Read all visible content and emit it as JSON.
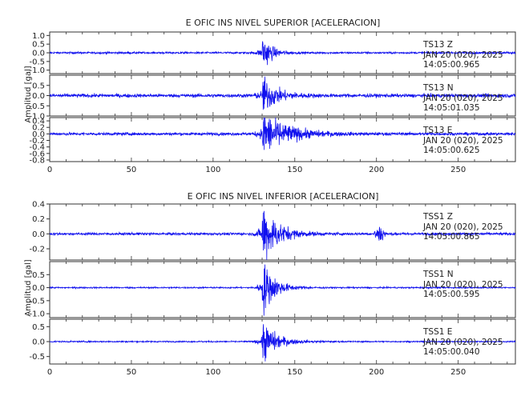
{
  "chart_data": [
    {
      "type": "line",
      "title": "E OFIC INS NIVEL SUPERIOR [ACELERACION]",
      "ylabel": "Amplitud [gal]",
      "xlabel": "",
      "xlim": [
        0,
        285
      ],
      "x_ticks": [
        0,
        50,
        100,
        150,
        200,
        250
      ],
      "grid": false,
      "series_color": "#1010ee",
      "event_time": 130,
      "panels": [
        {
          "station": "TS13",
          "component": "Z",
          "date": "JAN 20 (020), 2025",
          "time": "14:05:00.965",
          "ylim": [
            -1.2,
            1.2
          ],
          "y_ticks": [
            1.0,
            0.5,
            0.0,
            -0.5,
            -1.0
          ],
          "y_tick_labels": [
            "1.0",
            "0.5",
            "0.0",
            "-0.5",
            "-1.0"
          ],
          "noise": 0.05,
          "peak": 1.1,
          "decay": 5
        },
        {
          "station": "TS13",
          "component": "N",
          "date": "JAN 20 (020), 2025",
          "time": "14:05:01.035",
          "ylim": [
            -1.0,
            1.0
          ],
          "y_ticks": [
            0.5,
            0.0,
            -0.5,
            -1.0
          ],
          "y_tick_labels": [
            "0.5",
            "0.0",
            "-0.5",
            "-1.0"
          ],
          "noise": 0.08,
          "peak": 0.9,
          "decay": 8
        },
        {
          "station": "TS13",
          "component": "E",
          "date": "JAN 20 (020), 2025",
          "time": "14:05:00.625",
          "ylim": [
            -0.85,
            0.5
          ],
          "y_ticks": [
            0.4,
            0.2,
            0.0,
            -0.2,
            -0.4,
            -0.6,
            -0.8
          ],
          "y_tick_labels": [
            "0.4",
            "0.2",
            "0.0",
            "-0.2",
            "-0.4",
            "-0.6",
            "-0.8"
          ],
          "noise": 0.04,
          "peak": 0.7,
          "decay": 14
        }
      ]
    },
    {
      "type": "line",
      "title": "E OFIC INS NIVEL INFERIOR [ACELERACION]",
      "ylabel": "Amplitud [gal]",
      "xlabel": "",
      "xlim": [
        0,
        285
      ],
      "x_ticks": [
        0,
        50,
        100,
        150,
        200,
        250
      ],
      "grid": false,
      "series_color": "#1010ee",
      "event_time": 130,
      "panels": [
        {
          "station": "TSS1",
          "component": "Z",
          "date": "JAN 20 (020), 2025",
          "time": "14:05:00.865",
          "ylim": [
            -0.35,
            0.4
          ],
          "y_ticks": [
            0.4,
            0.2,
            0.0,
            -0.2
          ],
          "y_tick_labels": [
            "0.4",
            "0.2",
            "0.0",
            "-0.2"
          ],
          "noise": 0.015,
          "peak": 0.4,
          "decay": 9,
          "secondary_burst": 202
        },
        {
          "station": "TSS1",
          "component": "N",
          "date": "JAN 20 (020), 2025",
          "time": "14:05:00.595",
          "ylim": [
            -1.15,
            1.0
          ],
          "y_ticks": [
            0.5,
            0.0,
            -0.5,
            -1.0
          ],
          "y_tick_labels": [
            "0.5",
            "0.0",
            "-0.5",
            "-1.0"
          ],
          "noise": 0.025,
          "peak": 1.05,
          "decay": 7
        },
        {
          "station": "TSS1",
          "component": "E",
          "date": "JAN 20 (020), 2025",
          "time": "14:05:00.040",
          "ylim": [
            -0.75,
            0.75
          ],
          "y_ticks": [
            0.5,
            0.0,
            -0.5
          ],
          "y_tick_labels": [
            "0.5",
            "0.0",
            "-0.5"
          ],
          "noise": 0.02,
          "peak": 0.7,
          "decay": 8
        }
      ]
    }
  ]
}
